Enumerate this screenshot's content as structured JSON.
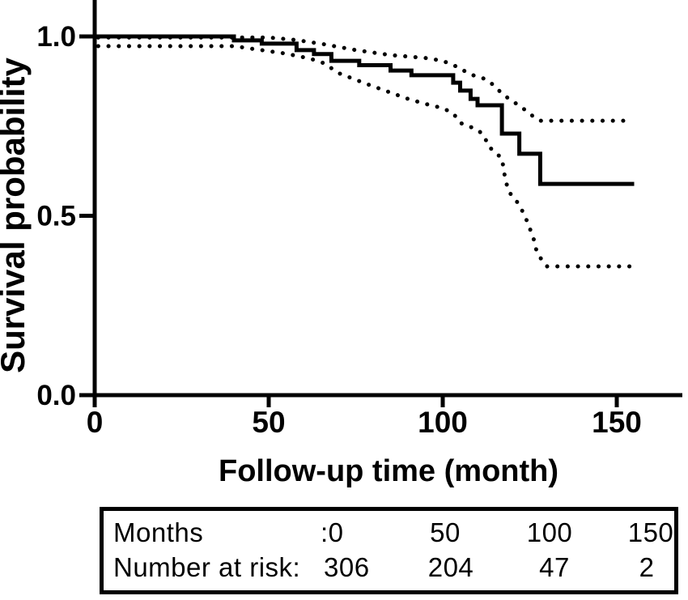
{
  "figure": {
    "background": "#ffffff",
    "ink": "#000000"
  },
  "chart_data": {
    "type": "line",
    "subtype": "kaplan-meier-step-with-95ci",
    "title": "",
    "xlabel": "Follow-up time (month)",
    "ylabel": "Survival probability",
    "xlim": [
      0,
      169
    ],
    "ylim": [
      0,
      1.1
    ],
    "grid": false,
    "legend": "none",
    "x_ticks": [
      {
        "value": 0,
        "label": "0"
      },
      {
        "value": 50,
        "label": "50"
      },
      {
        "value": 100,
        "label": "100"
      },
      {
        "value": 150,
        "label": "150"
      }
    ],
    "y_ticks": [
      {
        "value": 0.0,
        "label": "0.0"
      },
      {
        "value": 0.5,
        "label": "0.5"
      },
      {
        "value": 1.0,
        "label": "1.0"
      }
    ],
    "series": [
      {
        "name": "survival-estimate",
        "style": "solid-step",
        "points": [
          [
            0,
            1.0
          ],
          [
            40,
            0.989
          ],
          [
            48,
            0.98
          ],
          [
            58,
            0.962
          ],
          [
            63,
            0.951
          ],
          [
            68,
            0.932
          ],
          [
            76,
            0.92
          ],
          [
            85,
            0.905
          ],
          [
            91,
            0.892
          ],
          [
            103,
            0.871
          ],
          [
            105,
            0.849
          ],
          [
            108,
            0.826
          ],
          [
            110,
            0.808
          ],
          [
            117,
            0.729
          ],
          [
            122,
            0.673
          ],
          [
            128,
            0.589
          ],
          [
            155,
            0.589
          ]
        ]
      },
      {
        "name": "upper-95ci",
        "style": "dotted",
        "points": [
          [
            1,
            0.997
          ],
          [
            50,
            0.997
          ],
          [
            58,
            0.99
          ],
          [
            66,
            0.978
          ],
          [
            75,
            0.962
          ],
          [
            85,
            0.948
          ],
          [
            95,
            0.94
          ],
          [
            100,
            0.932
          ],
          [
            104,
            0.916
          ],
          [
            108,
            0.894
          ],
          [
            112,
            0.882
          ],
          [
            115,
            0.862
          ],
          [
            117,
            0.84
          ],
          [
            120,
            0.82
          ],
          [
            123,
            0.8
          ],
          [
            126,
            0.777
          ],
          [
            128,
            0.765
          ],
          [
            154,
            0.765
          ]
        ]
      },
      {
        "name": "lower-95ci",
        "style": "dotted",
        "points": [
          [
            1,
            0.973
          ],
          [
            40,
            0.973
          ],
          [
            45,
            0.966
          ],
          [
            55,
            0.952
          ],
          [
            62,
            0.938
          ],
          [
            66,
            0.925
          ],
          [
            70,
            0.898
          ],
          [
            78,
            0.868
          ],
          [
            84,
            0.847
          ],
          [
            90,
            0.826
          ],
          [
            95,
            0.812
          ],
          [
            100,
            0.8
          ],
          [
            103,
            0.786
          ],
          [
            105,
            0.759
          ],
          [
            110,
            0.74
          ],
          [
            112,
            0.722
          ],
          [
            113,
            0.695
          ],
          [
            117,
            0.66
          ],
          [
            118,
            0.6
          ],
          [
            119,
            0.567
          ],
          [
            122,
            0.531
          ],
          [
            124,
            0.49
          ],
          [
            126,
            0.44
          ],
          [
            127,
            0.4
          ],
          [
            129,
            0.368
          ],
          [
            130,
            0.359
          ],
          [
            154,
            0.359
          ]
        ]
      }
    ],
    "number_at_risk": {
      "months": [
        0,
        50,
        100,
        150
      ],
      "counts": [
        306,
        204,
        47,
        2
      ]
    }
  },
  "risk_table": {
    "months_label": "Months",
    "risk_label": "Number at risk:",
    "months_values": [
      ":0",
      "50",
      "100",
      "150"
    ],
    "risk_values": [
      "306",
      "204",
      "47",
      "2"
    ]
  }
}
